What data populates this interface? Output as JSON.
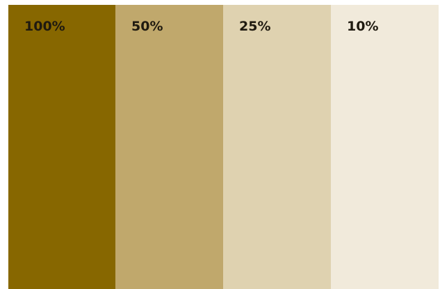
{
  "swatches": [
    {
      "label": "100%",
      "tint": 1.0,
      "color": "#876700"
    },
    {
      "label": "50%",
      "tint": 0.5,
      "color": "#c0a86c"
    },
    {
      "label": "25%",
      "tint": 0.25,
      "color": "#dfd2b0"
    },
    {
      "label": "10%",
      "tint": 0.1,
      "color": "#f1eadb"
    }
  ]
}
